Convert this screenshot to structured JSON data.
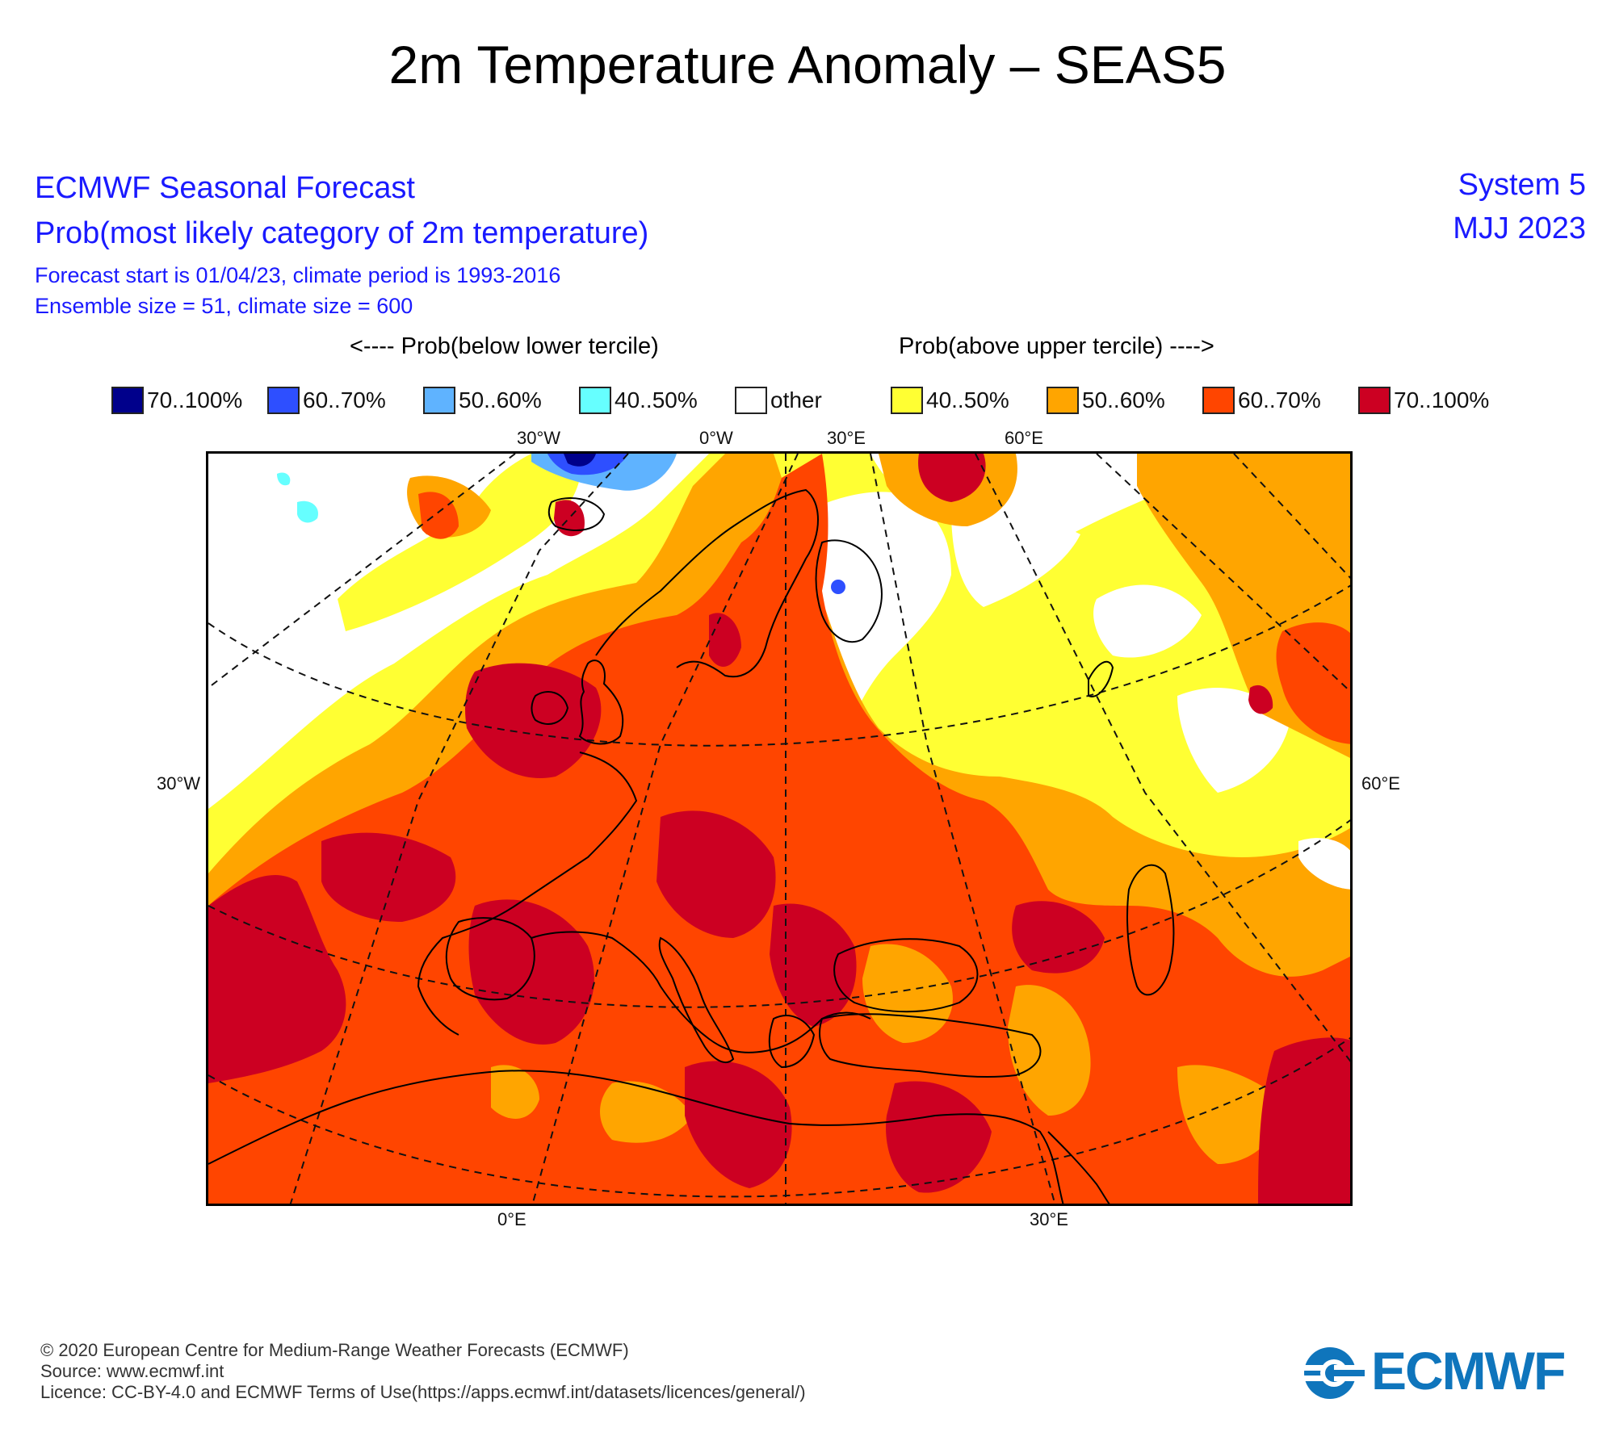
{
  "title": "2m Temperature Anomaly – SEAS5",
  "header": {
    "line1": "ECMWF Seasonal Forecast",
    "line2": "Prob(most likely category of 2m temperature)",
    "line3": "Forecast start is 01/04/23, climate period is 1993-2016",
    "line4": "Ensemble size = 51, climate size = 600",
    "system": "System 5",
    "period": "MJJ 2023"
  },
  "legend": {
    "below_heading": "<---- Prob(below lower tercile)",
    "above_heading": "Prob(above upper tercile) ---->",
    "items": [
      {
        "label": "70..100%",
        "color": "#00008b"
      },
      {
        "label": "60..70%",
        "color": "#2e4fff"
      },
      {
        "label": "50..60%",
        "color": "#5fb3ff"
      },
      {
        "label": "40..50%",
        "color": "#66ffff"
      },
      {
        "label": "other",
        "color": "#ffffff"
      },
      {
        "label": "40..50%",
        "color": "#ffff33"
      },
      {
        "label": "50..60%",
        "color": "#ffa500"
      },
      {
        "label": "60..70%",
        "color": "#ff4500"
      },
      {
        "label": "70..100%",
        "color": "#cc0022"
      }
    ]
  },
  "map": {
    "lon_labels_top": [
      "30°W",
      "0°W",
      "30°E",
      "60°E"
    ],
    "lat_label_left": "30°W",
    "lat_label_right": "60°E",
    "lon_labels_bottom": [
      "0°E",
      "30°E"
    ]
  },
  "footer": {
    "line1": "© 2020 European Centre for Medium-Range Weather Forecasts (ECMWF)",
    "line2": "Source: www.ecmwf.int",
    "line3": "Licence: CC-BY-4.0 and ECMWF Terms of Use(https://apps.ecmwf.int/datasets/licences/general/)",
    "logo_text": "ECMWF"
  }
}
